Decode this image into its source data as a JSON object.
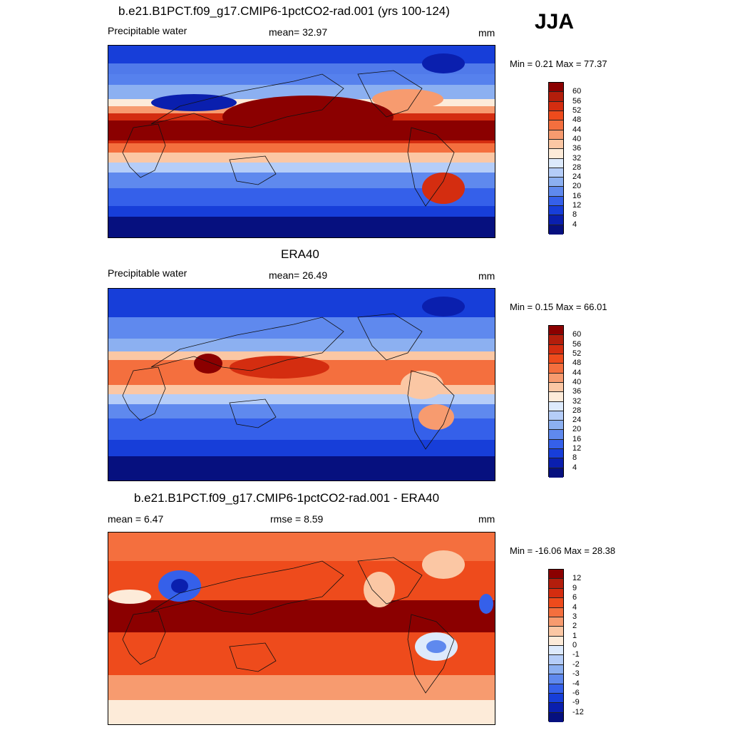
{
  "season": "JJA",
  "panels": [
    {
      "title": "b.e21.B1PCT.f09_g17.CMIP6-1pctCO2-rad.001 (yrs 100-124)",
      "left_label": "Precipitable water",
      "center_label": "mean=  32.97",
      "units": "mm",
      "minmax": "Min =   0.21 Max =  77.37",
      "levels": [
        "60",
        "56",
        "52",
        "48",
        "44",
        "40",
        "36",
        "32",
        "28",
        "24",
        "20",
        "16",
        "12",
        "8",
        "4"
      ],
      "colors": [
        "#8b0000",
        "#b31e0c",
        "#d42d10",
        "#ee4b1c",
        "#f46f3e",
        "#f79b6f",
        "#fbc7a4",
        "#fdebd9",
        "#ddeafc",
        "#b5cdf8",
        "#8cb0f1",
        "#5f89ee",
        "#3560ea",
        "#173ed9",
        "#0a1fae",
        "#06107f"
      ]
    },
    {
      "title": "ERA40",
      "left_label": "Precipitable water",
      "center_label": "mean=  26.49",
      "units": "mm",
      "minmax": "Min =   0.15 Max =  66.01",
      "levels": [
        "60",
        "56",
        "52",
        "48",
        "44",
        "40",
        "36",
        "32",
        "28",
        "24",
        "20",
        "16",
        "12",
        "8",
        "4"
      ],
      "colors": [
        "#8b0000",
        "#b31e0c",
        "#d42d10",
        "#ee4b1c",
        "#f46f3e",
        "#f79b6f",
        "#fbc7a4",
        "#fdebd9",
        "#ddeafc",
        "#b5cdf8",
        "#8cb0f1",
        "#5f89ee",
        "#3560ea",
        "#173ed9",
        "#0a1fae",
        "#06107f"
      ]
    },
    {
      "title": "b.e21.B1PCT.f09_g17.CMIP6-1pctCO2-rad.001 - ERA40",
      "left_label": "mean =   6.47",
      "center_label": "rmse =   8.59",
      "units": "mm",
      "minmax": "Min = -16.06 Max =  28.38",
      "levels": [
        "12",
        "9",
        "6",
        "4",
        "3",
        "2",
        "1",
        "0",
        "-1",
        "-2",
        "-3",
        "-4",
        "-6",
        "-9",
        "-12"
      ],
      "colors": [
        "#8b0000",
        "#b31e0c",
        "#d42d10",
        "#ee4b1c",
        "#f46f3e",
        "#f79b6f",
        "#fbc7a4",
        "#fdebd9",
        "#ddeafc",
        "#b5cdf8",
        "#8cb0f1",
        "#5f89ee",
        "#3560ea",
        "#173ed9",
        "#0a1fae",
        "#06107f"
      ]
    }
  ]
}
